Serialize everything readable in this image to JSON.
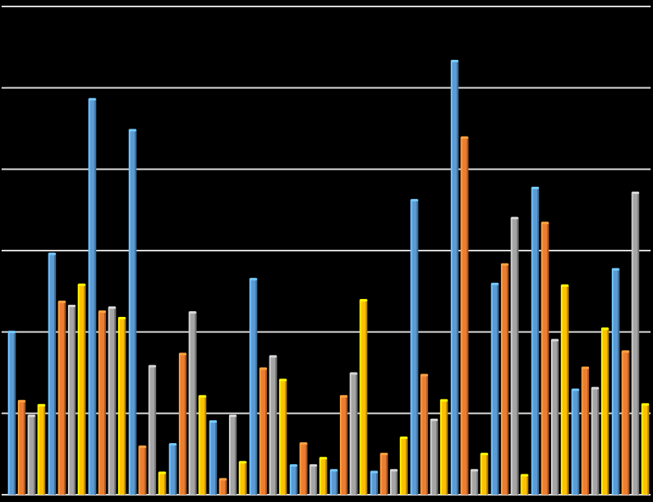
{
  "chart_data": {
    "type": "bar",
    "categories": [
      null,
      null,
      null,
      null,
      null,
      null,
      null,
      null,
      null,
      null,
      null,
      null,
      null,
      null,
      null,
      null
    ],
    "series": [
      {
        "color": "#5b9bd5",
        "values": [
          2.0,
          2.96,
          4.86,
          4.48,
          0.62,
          0.9,
          2.65,
          0.36,
          0.3,
          0.28,
          3.62,
          5.33,
          2.59,
          3.77,
          1.29,
          2.77
        ]
      },
      {
        "color": "#ed7d31",
        "values": [
          1.15,
          2.37,
          2.25,
          0.59,
          1.73,
          0.19,
          1.55,
          0.63,
          1.21,
          0.5,
          1.47,
          4.39,
          2.83,
          3.34,
          1.56,
          1.76
        ]
      },
      {
        "color": "#a5a5a5",
        "values": [
          0.97,
          2.32,
          2.3,
          1.58,
          2.24,
          0.97,
          1.7,
          0.36,
          1.49,
          0.3,
          0.92,
          0.3,
          3.4,
          1.9,
          1.31,
          3.71
        ]
      },
      {
        "color": "#ffc000",
        "values": [
          1.1,
          2.58,
          2.17,
          0.27,
          1.21,
          0.4,
          1.41,
          0.45,
          2.39,
          0.7,
          1.16,
          0.5,
          0.24,
          2.57,
          2.04,
          1.11
        ]
      }
    ],
    "ylim": [
      0,
      6
    ],
    "yticks": [
      0,
      1,
      2,
      3,
      4,
      5,
      6
    ],
    "grid": true
  }
}
